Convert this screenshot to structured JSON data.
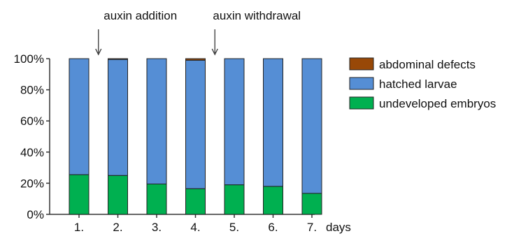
{
  "chart_data": {
    "type": "bar",
    "stacked": true,
    "categories": [
      "1.",
      "2.",
      "3.",
      "4.",
      "5.",
      "6.",
      "7."
    ],
    "xunit": "days",
    "yticks": [
      "0%",
      "20%",
      "40%",
      "60%",
      "80%",
      "100%"
    ],
    "ylim": [
      0,
      100
    ],
    "series": [
      {
        "name": "undeveloped embryos",
        "color": "#00B050",
        "values": [
          25.5,
          25,
          19.5,
          16.5,
          19,
          18,
          13.5
        ]
      },
      {
        "name": "hatched larvae",
        "color": "#558ED5",
        "values": [
          74.5,
          74.5,
          80.5,
          82.5,
          81,
          82,
          86.5
        ]
      },
      {
        "name": "abdominal defects",
        "color": "#984807",
        "values": [
          0,
          0.5,
          0,
          1,
          0,
          0,
          0
        ]
      }
    ],
    "legend": {
      "placement": "right",
      "order": [
        "abdominal defects",
        "hatched larvae",
        "undeveloped embryos"
      ]
    },
    "annotations": [
      {
        "text": "auxin addition",
        "between": [
          1,
          2
        ]
      },
      {
        "text": "auxin withdrawal",
        "between": [
          4,
          5
        ]
      }
    ]
  }
}
